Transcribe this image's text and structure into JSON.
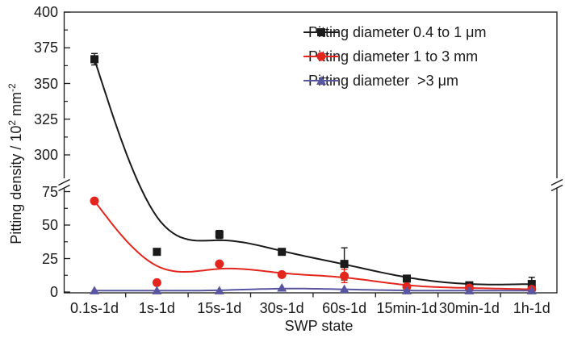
{
  "figure": {
    "background": "#ffffff",
    "axis_color": "#1a1a1a",
    "text_color": "#1a1a1a"
  },
  "chart_data": {
    "type": "line",
    "title": "",
    "xlabel": "SWP state",
    "ylabel": {
      "prefix": "Pitting density / 10",
      "sup1": "2",
      "mid": " mm",
      "sup2": "-2"
    },
    "categories": [
      "0.1s-1d",
      "1s-1d",
      "15s-1d",
      "30s-1d",
      "60s-1d",
      "15min-1d",
      "30min-1d",
      "1h-1d"
    ],
    "y_axis": {
      "broken": true,
      "lower_range": [
        0,
        75
      ],
      "upper_range": [
        300,
        400
      ],
      "lower_ticks": [
        0,
        25,
        50,
        75
      ],
      "upper_ticks": [
        300,
        325,
        350,
        375,
        400
      ],
      "lower_minor_ticks": [
        12.5,
        37.5,
        62.5
      ],
      "upper_minor_ticks": [
        312.5,
        337.5,
        362.5,
        387.5
      ]
    },
    "grid": false,
    "legend_position": "top-right",
    "series": [
      {
        "name": "Pitting diameter 0.4 to 1 μm",
        "marker": "square",
        "color": "#1a1a1a",
        "values": [
          367,
          30,
          43,
          30,
          21,
          10,
          5,
          6
        ],
        "errors": [
          4,
          0,
          3,
          0,
          12,
          0,
          0,
          5
        ]
      },
      {
        "name": "Pitting diameter 1 to 3 mm",
        "marker": "circle",
        "color": "#e3261d",
        "values": [
          68,
          7,
          21,
          13,
          12,
          4,
          3,
          2
        ],
        "errors": [
          0,
          0,
          0,
          0,
          5,
          0,
          0,
          0
        ]
      },
      {
        "name": "Pitting diameter  >3 μm",
        "marker": "triangle",
        "color": "#5856a0",
        "values": [
          1,
          1,
          1,
          3,
          2,
          1,
          1,
          1
        ],
        "errors": [
          0,
          0,
          0,
          0,
          0,
          0,
          0,
          0
        ]
      }
    ]
  }
}
